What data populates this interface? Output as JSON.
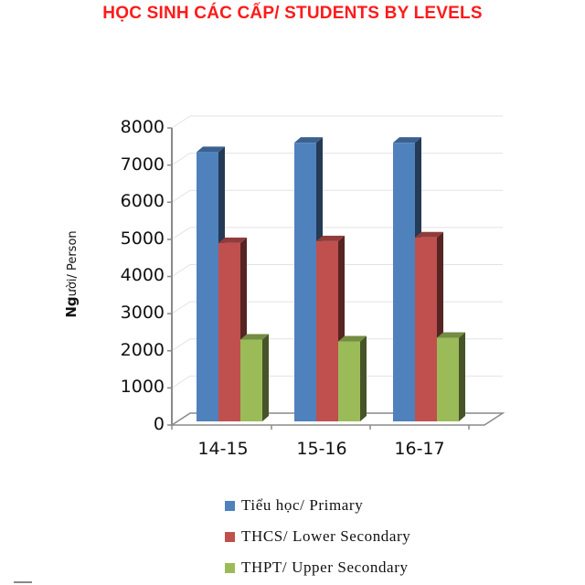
{
  "title": "HỌC SINH CÁC CẤP/ STUDENTS BY LEVELS",
  "chart_data": {
    "type": "bar",
    "style": "3d-clustered-column",
    "title": "HỌC SINH CÁC CẤP/ STUDENTS BY LEVELS",
    "xlabel": "",
    "ylabel": "Người/ Person",
    "ylim": [
      0,
      8000
    ],
    "yticks": [
      0,
      1000,
      2000,
      3000,
      4000,
      5000,
      6000,
      7000,
      8000
    ],
    "grid": true,
    "legend_position": "bottom",
    "categories": [
      "14-15",
      "15-16",
      "16-17"
    ],
    "series": [
      {
        "name": "Tiểu học/ Primary",
        "color": "#4f81bd",
        "values": [
          7500,
          7750,
          7750
        ]
      },
      {
        "name": "THCS/ Lower Secondary",
        "color": "#c0504d",
        "values": [
          5050,
          5100,
          5200
        ]
      },
      {
        "name": "THPT/ Upper Secondary",
        "color": "#9bbb59",
        "values": [
          2450,
          2400,
          2500
        ]
      }
    ]
  },
  "axis": {
    "ylabel_bold": "Ng",
    "ylabel_rest": "ười/ Person",
    "tick_labels": [
      "8000",
      "7000",
      "6000",
      "5000",
      "4000",
      "3000",
      "2000",
      "1000",
      "0"
    ]
  },
  "legend": {
    "items": [
      {
        "label": "Tiểu học/ Primary",
        "color": "#4f81bd"
      },
      {
        "label": "THCS/ Lower Secondary",
        "color": "#c0504d"
      },
      {
        "label": "THPT/ Upper Secondary",
        "color": "#9bbb59"
      }
    ]
  }
}
